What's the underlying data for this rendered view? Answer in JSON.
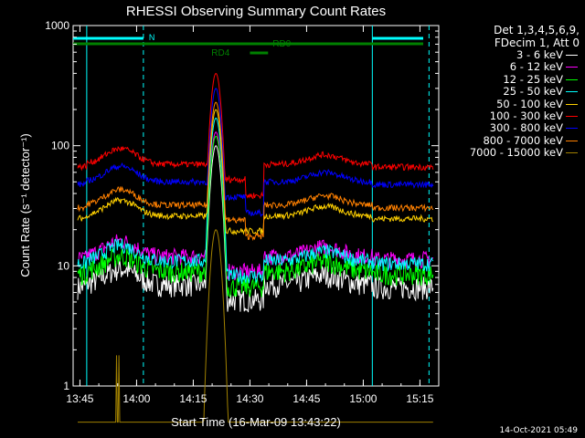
{
  "chart_data": {
    "type": "line",
    "title": "RHESSI Observing Summary Count Rates",
    "xlabel": "Start Time (16-Mar-09 13:43:22)",
    "ylabel": "Count Rate (s⁻¹ detector⁻¹)",
    "yscale": "log",
    "ylim": [
      1,
      1000
    ],
    "xlim_minutes": [
      13.72,
      15.333
    ],
    "x_tick_labels": [
      "13:45",
      "14:00",
      "14:15",
      "14:30",
      "14:45",
      "15:00",
      "15:15"
    ],
    "y_tick_labels": [
      "1",
      "10",
      "100",
      "1000"
    ],
    "legend_header": [
      "Det 1,3,4,5,6,9,",
      "FDecim 1, Att 0"
    ],
    "series": [
      {
        "name": "3 - 6 keV",
        "color": "#ffffff",
        "base": 7,
        "peak": 100
      },
      {
        "name": "6 - 12 keV",
        "color": "#ff00ff",
        "base": 12,
        "peak": 130
      },
      {
        "name": "12 - 25 keV",
        "color": "#00ff00",
        "base": 9,
        "peak": 120
      },
      {
        "name": "25 - 50 keV",
        "color": "#00ffff",
        "base": 11,
        "peak": 170
      },
      {
        "name": "50 - 100 keV",
        "color": "#ffd000",
        "base": 26,
        "peak": 200
      },
      {
        "name": "100 - 300 keV",
        "color": "#ff0000",
        "base": 70,
        "peak": 400
      },
      {
        "name": "300 - 800 keV",
        "color": "#0000ff",
        "base": 50,
        "peak": 300
      },
      {
        "name": "800 - 7000 keV",
        "color": "#ff8000",
        "base": 32,
        "peak": 230
      },
      {
        "name": "7000 - 15000 keV",
        "color": "#a08000",
        "base": 1,
        "peak": 20
      }
    ],
    "annotations": {
      "night_label": "N",
      "night_color": "#00ffff",
      "rd_label": "RD0",
      "rd4_label": "RD4",
      "flag_color": "#008000"
    }
  },
  "footer": {
    "timestamp": "14-Oct-2021 05:49"
  }
}
